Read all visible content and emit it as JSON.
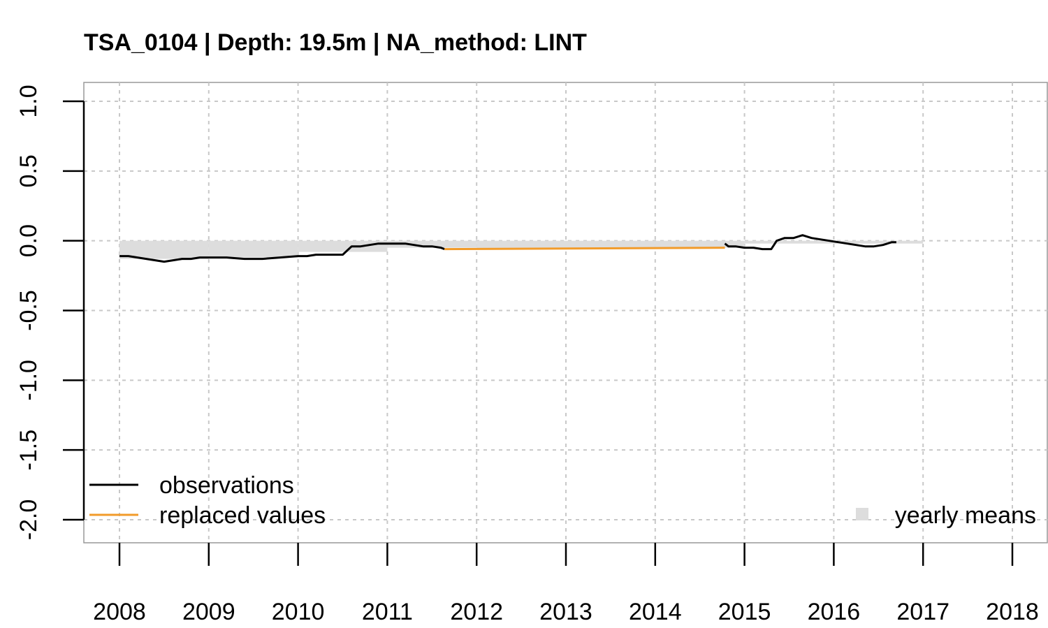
{
  "chart_data": {
    "type": "line",
    "title": "TSA_0104 | Depth: 19.5m | NA_method: LINT",
    "xlabel": "",
    "ylabel": "",
    "xlim": [
      2008,
      2018
    ],
    "ylim": [
      -2.0,
      1.0
    ],
    "x_ticks": [
      "2008",
      "2009",
      "2010",
      "2011",
      "2012",
      "2013",
      "2014",
      "2015",
      "2016",
      "2017",
      "2018"
    ],
    "y_ticks": [
      "1.0",
      "0.5",
      "0.0",
      "-0.5",
      "-1.0",
      "-1.5",
      "-2.0"
    ],
    "grid": true,
    "legend": {
      "left": [
        {
          "label": "observations",
          "color": "#000000"
        },
        {
          "label": "replaced values",
          "color": "#f29b2a"
        }
      ],
      "right": [
        {
          "label": "yearly means",
          "color": "#dddddd"
        }
      ]
    },
    "series": [
      {
        "name": "observations",
        "color": "#000000",
        "segments": [
          [
            [
              2008.0,
              -0.11
            ],
            [
              2008.1,
              -0.11
            ],
            [
              2008.2,
              -0.12
            ],
            [
              2008.3,
              -0.13
            ],
            [
              2008.4,
              -0.14
            ],
            [
              2008.5,
              -0.15
            ],
            [
              2008.6,
              -0.14
            ],
            [
              2008.7,
              -0.13
            ],
            [
              2008.8,
              -0.13
            ],
            [
              2008.9,
              -0.12
            ],
            [
              2009.0,
              -0.12
            ],
            [
              2009.2,
              -0.12
            ],
            [
              2009.4,
              -0.13
            ],
            [
              2009.6,
              -0.13
            ],
            [
              2009.8,
              -0.12
            ],
            [
              2010.0,
              -0.11
            ],
            [
              2010.1,
              -0.11
            ],
            [
              2010.2,
              -0.1
            ],
            [
              2010.3,
              -0.1
            ],
            [
              2010.4,
              -0.1
            ],
            [
              2010.5,
              -0.1
            ],
            [
              2010.55,
              -0.07
            ],
            [
              2010.6,
              -0.04
            ],
            [
              2010.7,
              -0.04
            ],
            [
              2010.8,
              -0.03
            ],
            [
              2010.9,
              -0.02
            ],
            [
              2011.0,
              -0.02
            ],
            [
              2011.1,
              -0.02
            ],
            [
              2011.2,
              -0.02
            ],
            [
              2011.3,
              -0.03
            ],
            [
              2011.4,
              -0.04
            ],
            [
              2011.5,
              -0.04
            ],
            [
              2011.6,
              -0.05
            ],
            [
              2011.64,
              -0.06
            ]
          ],
          [
            [
              2014.78,
              -0.02
            ],
            [
              2014.82,
              -0.04
            ],
            [
              2014.9,
              -0.04
            ],
            [
              2015.0,
              -0.05
            ],
            [
              2015.1,
              -0.05
            ],
            [
              2015.2,
              -0.06
            ],
            [
              2015.3,
              -0.06
            ],
            [
              2015.33,
              -0.03
            ],
            [
              2015.36,
              0.0
            ],
            [
              2015.45,
              0.02
            ],
            [
              2015.55,
              0.02
            ],
            [
              2015.65,
              0.04
            ],
            [
              2015.75,
              0.02
            ],
            [
              2015.85,
              0.01
            ],
            [
              2015.95,
              0.0
            ],
            [
              2016.05,
              -0.01
            ],
            [
              2016.15,
              -0.02
            ],
            [
              2016.25,
              -0.03
            ],
            [
              2016.35,
              -0.04
            ],
            [
              2016.45,
              -0.04
            ],
            [
              2016.55,
              -0.03
            ],
            [
              2016.65,
              -0.01
            ],
            [
              2016.7,
              -0.01
            ]
          ]
        ]
      },
      {
        "name": "replaced values",
        "color": "#f29b2a",
        "segments": [
          [
            [
              2011.64,
              -0.06
            ],
            [
              2014.78,
              -0.05
            ]
          ]
        ]
      }
    ],
    "yearly_means": [
      {
        "year": 2008,
        "value": -0.13
      },
      {
        "year": 2009,
        "value": -0.12
      },
      {
        "year": 2010,
        "value": -0.08
      },
      {
        "year": 2011,
        "value": -0.05
      },
      {
        "year": 2012,
        "value": -0.06
      },
      {
        "year": 2013,
        "value": -0.05
      },
      {
        "year": 2014,
        "value": -0.05
      },
      {
        "year": 2015,
        "value": -0.02
      },
      {
        "year": 2016,
        "value": -0.02
      }
    ]
  }
}
